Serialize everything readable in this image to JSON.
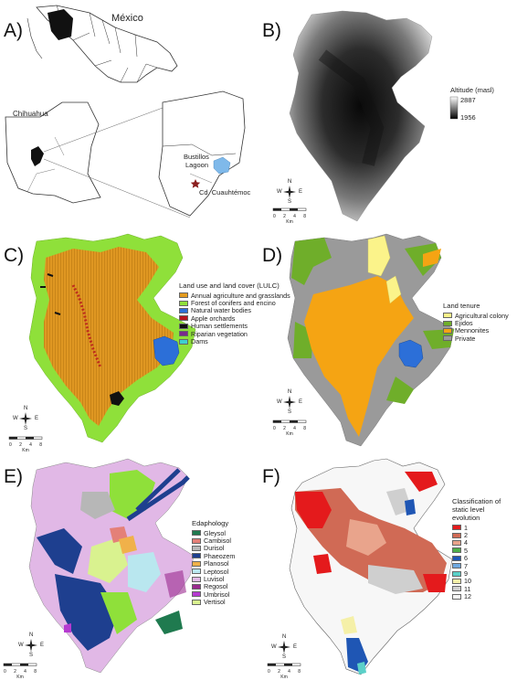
{
  "panels": {
    "a": {
      "label": "A)",
      "country": "México",
      "state": "Chihuahua",
      "lagoon": "Bustillos\nLagoon",
      "lagoon_l1": "Bustillos",
      "lagoon_l2": "Lagoon",
      "city": "Cd. Cuauhtémoc"
    },
    "b": {
      "label": "B)",
      "legend_title": "Altitude (masl)",
      "max": "2887",
      "min": "1956"
    },
    "c": {
      "label": "C)",
      "legend_title": "Land use and land cover (LULC)",
      "items": [
        {
          "name": "Annual agriculture and grasslands",
          "color": "#e39b1e"
        },
        {
          "name": "Forest of conifers and encino",
          "color": "#8fe03a"
        },
        {
          "name": "Natural water bodies",
          "color": "#2c6fd8"
        },
        {
          "name": "Apple orchards",
          "color": "#b8141d"
        },
        {
          "name": "Human settlements",
          "color": "#111111"
        },
        {
          "name": "Riparian vegetation",
          "color": "#7a2a8c"
        },
        {
          "name": "Dams",
          "color": "#3fd0cf"
        }
      ]
    },
    "d": {
      "label": "D)",
      "legend_title": "Land tenure",
      "items": [
        {
          "name": "Agricultural colony",
          "color": "#fbf38a"
        },
        {
          "name": "Ejidos",
          "color": "#6fae2a"
        },
        {
          "name": "Mennonites",
          "color": "#f5a413"
        },
        {
          "name": "Private",
          "color": "#9a9a9a"
        }
      ]
    },
    "e": {
      "label": "E)",
      "legend_title": "Edaphology",
      "items": [
        {
          "name": "Gleysol",
          "color": "#1f7a4f"
        },
        {
          "name": "Cambisol",
          "color": "#e48078"
        },
        {
          "name": "Durisol",
          "color": "#b7b7b7"
        },
        {
          "name": "Phaeozem",
          "color": "#1e3f8f"
        },
        {
          "name": "Planosol",
          "color": "#f0b14a"
        },
        {
          "name": "Leptosol",
          "color": "#b9e7ef"
        },
        {
          "name": "Luvisol",
          "color": "#e1b8e6"
        },
        {
          "name": "Regosol",
          "color": "#9b2a90"
        },
        {
          "name": "Umbrisol",
          "color": "#b63ad1"
        },
        {
          "name": "Vertisol",
          "color": "#d9f28f"
        }
      ]
    },
    "f": {
      "label": "F)",
      "legend_title_l1": "Classification of",
      "legend_title_l2": "static level",
      "legend_title_l3": "evolution",
      "items": [
        {
          "name": "1",
          "color": "#e41a1c"
        },
        {
          "name": "2",
          "color": "#d06a55"
        },
        {
          "name": "4",
          "color": "#e9a48c"
        },
        {
          "name": "5",
          "color": "#4daf4a"
        },
        {
          "name": "6",
          "color": "#1f56b4"
        },
        {
          "name": "7",
          "color": "#6fa9e0"
        },
        {
          "name": "9",
          "color": "#5bd0c8"
        },
        {
          "name": "10",
          "color": "#f5f0a8"
        },
        {
          "name": "11",
          "color": "#cfcfcf"
        },
        {
          "name": "12",
          "color": "#f7f7f7"
        }
      ]
    }
  },
  "compass": {
    "n": "N",
    "s": "S",
    "e": "E",
    "w": "W"
  },
  "scale": {
    "t0": "0",
    "t1": "2",
    "t2": "4",
    "t3": "8",
    "unit": "Km"
  }
}
